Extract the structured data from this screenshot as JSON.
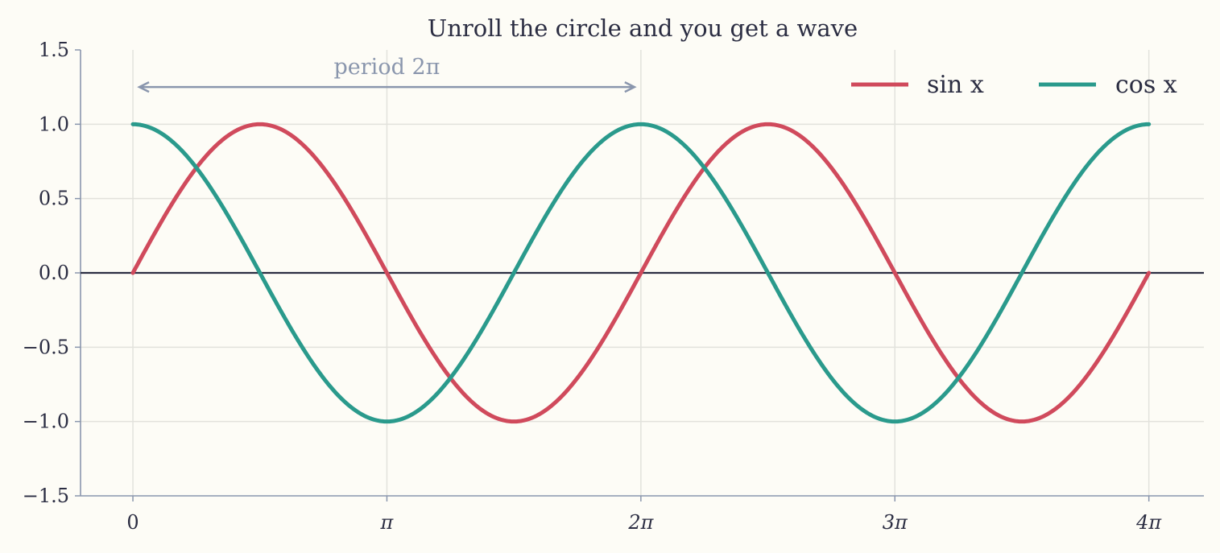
{
  "chart_data": {
    "type": "line",
    "title": "Unroll the circle and you get a wave",
    "xlabel": "",
    "ylabel": "",
    "xlim": [
      -0.6478,
      13.2469
    ],
    "ylim": [
      -1.5,
      1.5
    ],
    "x_ticks": [
      {
        "value": 0,
        "label": "0"
      },
      {
        "value": 3.14159,
        "label": "π"
      },
      {
        "value": 6.28319,
        "label": "2π"
      },
      {
        "value": 9.42478,
        "label": "3π"
      },
      {
        "value": 12.56637,
        "label": "4π"
      }
    ],
    "y_ticks": [
      {
        "value": 1.5,
        "label": "1.5"
      },
      {
        "value": 1.0,
        "label": "1.0"
      },
      {
        "value": 0.5,
        "label": "0.5"
      },
      {
        "value": 0.0,
        "label": "0.0"
      },
      {
        "value": -0.5,
        "label": "−0.5"
      },
      {
        "value": -1.0,
        "label": "−1.0"
      },
      {
        "value": -1.5,
        "label": "−1.5"
      }
    ],
    "grid": true,
    "zero_line": true,
    "legend_position": "top-right",
    "x": [
      0,
      0.7854,
      1.5708,
      2.3562,
      3.1416,
      3.927,
      4.7124,
      5.4978,
      6.2832,
      7.0686,
      7.854,
      8.6394,
      9.4248,
      10.2102,
      10.9956,
      11.781,
      12.5664
    ],
    "series": [
      {
        "name": "sin x",
        "color": "#d04a5c",
        "function": "sin",
        "values": [
          0,
          0.707,
          1,
          0.707,
          0,
          -0.707,
          -1,
          -0.707,
          0,
          0.707,
          1,
          0.707,
          0,
          -0.707,
          -1,
          -0.707,
          0
        ]
      },
      {
        "name": "cos x",
        "color": "#2a9a8c",
        "function": "cos",
        "values": [
          1,
          0.707,
          0,
          -0.707,
          -1,
          -0.707,
          0,
          0.707,
          1,
          0.707,
          0,
          -0.707,
          -1,
          -0.707,
          0,
          0.707,
          1
        ]
      }
    ],
    "annotations": [
      {
        "text": "period 2π",
        "x_start": 0,
        "x_end": 6.28319,
        "y": 1.25,
        "color": "#8a96ad"
      }
    ]
  },
  "colors": {
    "background": "#fdfcf6",
    "axis": "#8a96ad",
    "grid": "#e2e2dc",
    "zero_line": "#2b2d42",
    "text": "#2b2d42"
  }
}
